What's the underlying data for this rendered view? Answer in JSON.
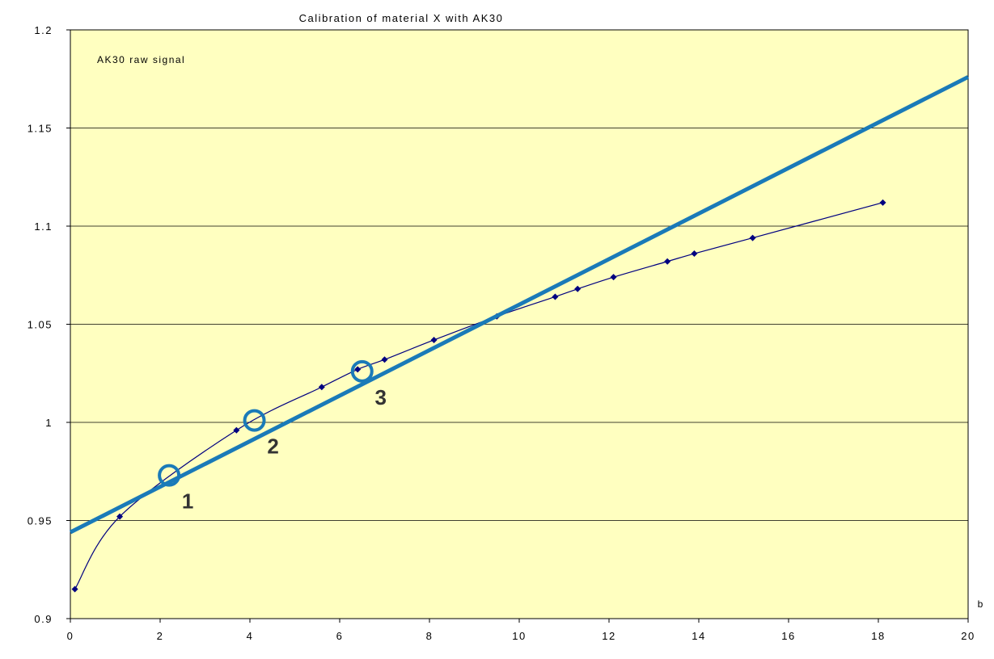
{
  "chart_data": {
    "type": "line",
    "title": "Calibration of material X with AK30",
    "annotation": "AK30 raw signal",
    "xlabel": "b",
    "ylabel": "",
    "xlim": [
      0,
      20
    ],
    "ylim": [
      0.9,
      1.2
    ],
    "x_ticks": [
      0,
      2,
      4,
      6,
      8,
      10,
      12,
      14,
      16,
      18,
      20
    ],
    "y_ticks": [
      0.9,
      0.95,
      1.0,
      1.05,
      1.1,
      1.15,
      1.2
    ],
    "x_tick_labels": [
      "0",
      "2",
      "4",
      "6",
      "8",
      "10",
      "12",
      "14",
      "16",
      "18",
      "20"
    ],
    "y_tick_labels": [
      "0.9",
      "0.95",
      "1",
      "1.05",
      "1.1",
      "1.15",
      "1.2"
    ],
    "grid": {
      "horizontal": true,
      "vertical": false
    },
    "legend": "none",
    "series": [
      {
        "kind": "line-with-markers",
        "color": "#000080",
        "marker": "diamond",
        "x": [
          0.1,
          1.1,
          3.7,
          5.6,
          6.4,
          7.0,
          8.1,
          9.5,
          10.8,
          11.3,
          12.1,
          13.3,
          13.9,
          15.2,
          18.1
        ],
        "y": [
          0.915,
          0.952,
          0.996,
          1.018,
          1.027,
          1.032,
          1.042,
          1.054,
          1.064,
          1.068,
          1.074,
          1.082,
          1.086,
          1.094,
          1.112
        ]
      },
      {
        "kind": "straight-line",
        "color": "#1a7ab8",
        "x": [
          0,
          20
        ],
        "y": [
          0.944,
          1.176
        ]
      }
    ],
    "circled_points": [
      {
        "label": "1",
        "x": 2.2,
        "y": 0.973
      },
      {
        "label": "2",
        "x": 4.1,
        "y": 1.001
      },
      {
        "label": "3",
        "x": 6.5,
        "y": 1.026
      }
    ],
    "colors": {
      "plot_background": "#ffffc0",
      "gridline": "#000000",
      "axis": "#000000",
      "fit_line": "#1a7ab8",
      "data_line": "#000080",
      "circle": "#1a7ab8",
      "circle_label": "#333333",
      "text": "#000000"
    }
  }
}
